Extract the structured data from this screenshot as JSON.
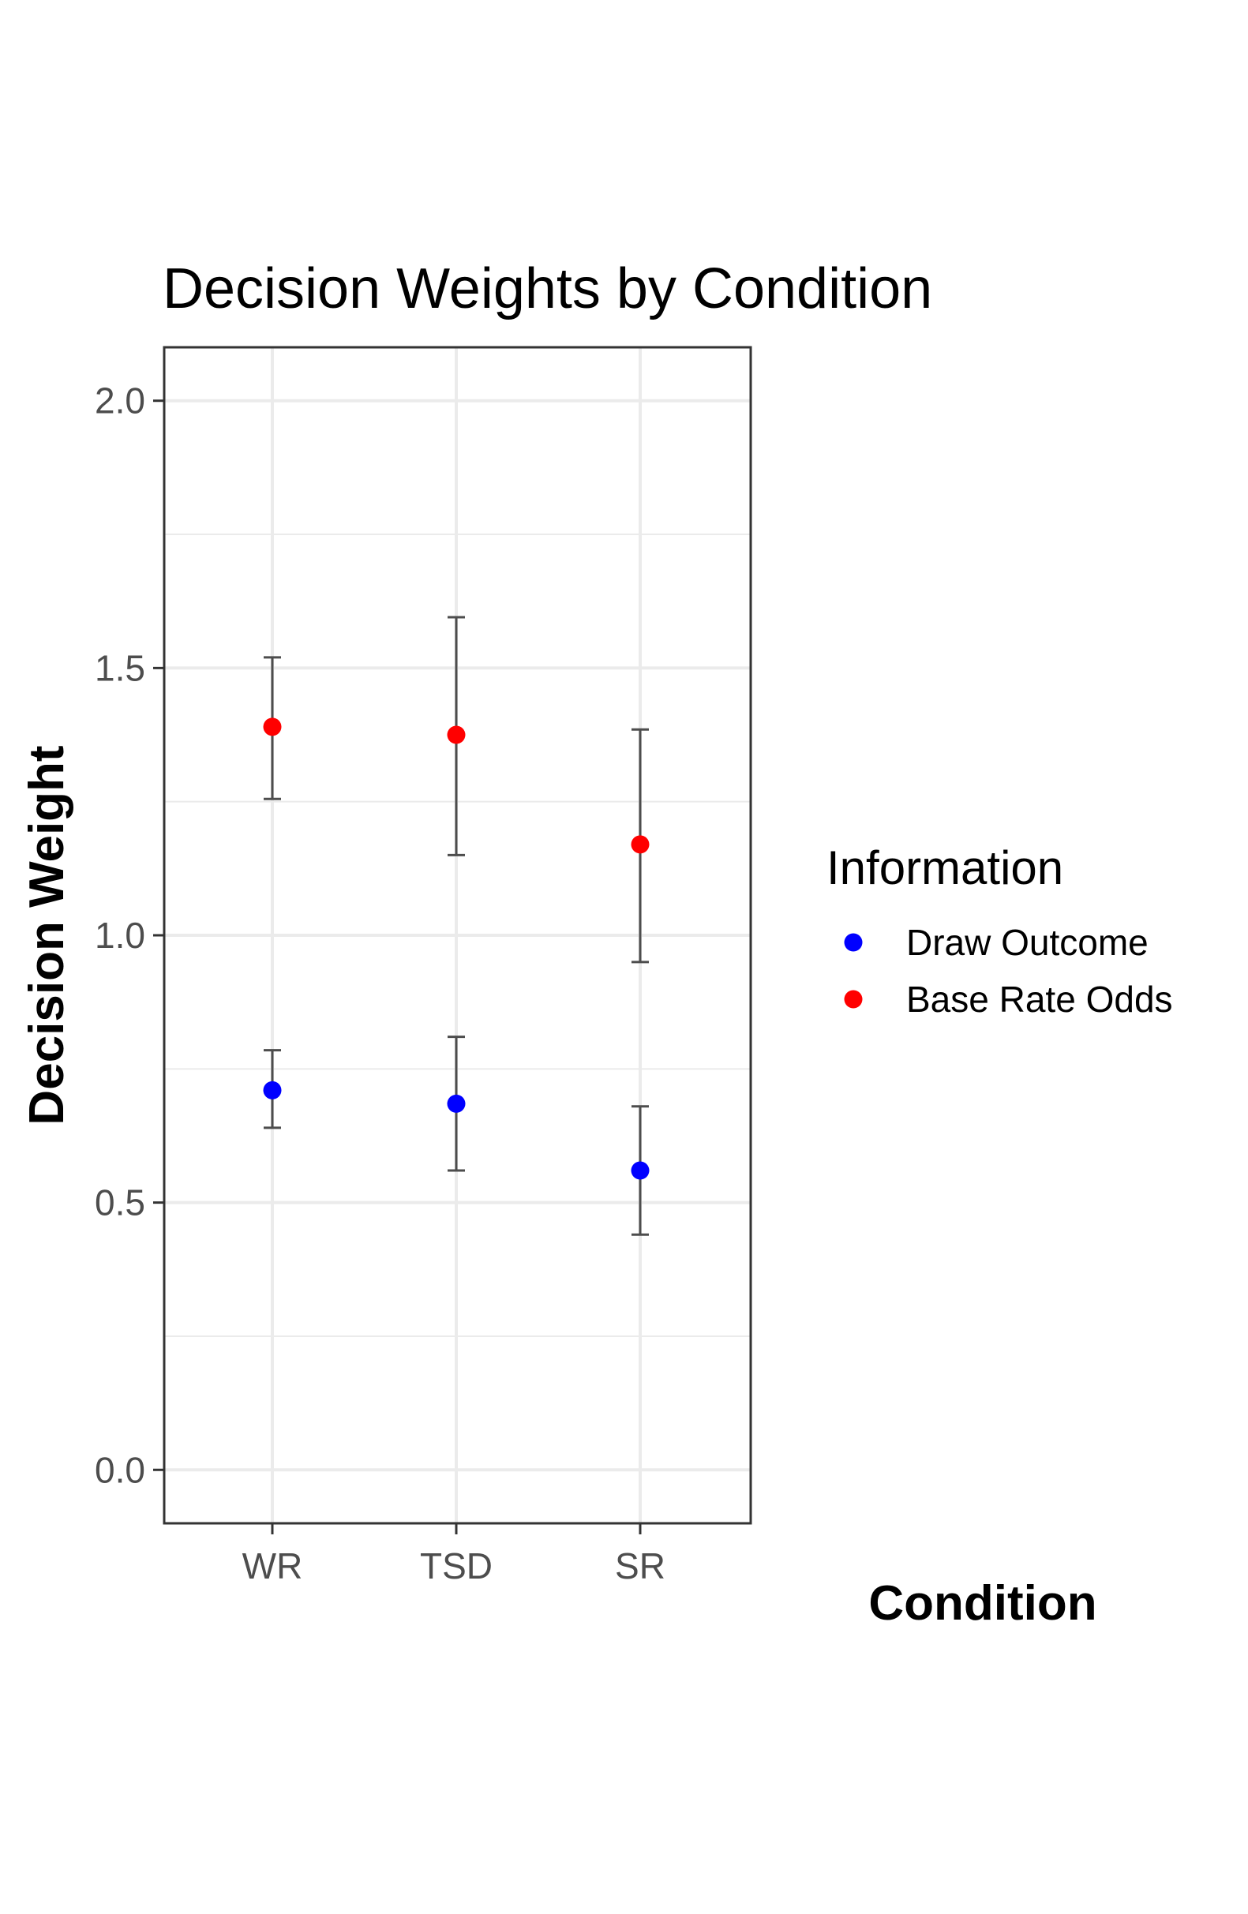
{
  "chart_data": {
    "type": "scatter",
    "title": "Decision Weights by Condition",
    "xlabel": "Condition",
    "ylabel": "Decision Weight",
    "categories": [
      "WR",
      "TSD",
      "SR"
    ],
    "ylim": [
      -0.1,
      2.1
    ],
    "yticks": [
      "0.0",
      "0.5",
      "1.0",
      "1.5",
      "2.0"
    ],
    "grid": true,
    "legend": {
      "title": "Information",
      "position": "right"
    },
    "series": [
      {
        "name": "Draw Outcome",
        "color": "#0000ff",
        "values": [
          0.71,
          0.685,
          0.56
        ],
        "lower": [
          0.64,
          0.56,
          0.44
        ],
        "upper": [
          0.785,
          0.81,
          0.68
        ]
      },
      {
        "name": "Base Rate Odds",
        "color": "#ff0000",
        "values": [
          1.39,
          1.375,
          1.17
        ],
        "lower": [
          1.255,
          1.15,
          0.95
        ],
        "upper": [
          1.52,
          1.595,
          1.385
        ]
      }
    ],
    "errorbar_color": "#4d4d4d"
  }
}
